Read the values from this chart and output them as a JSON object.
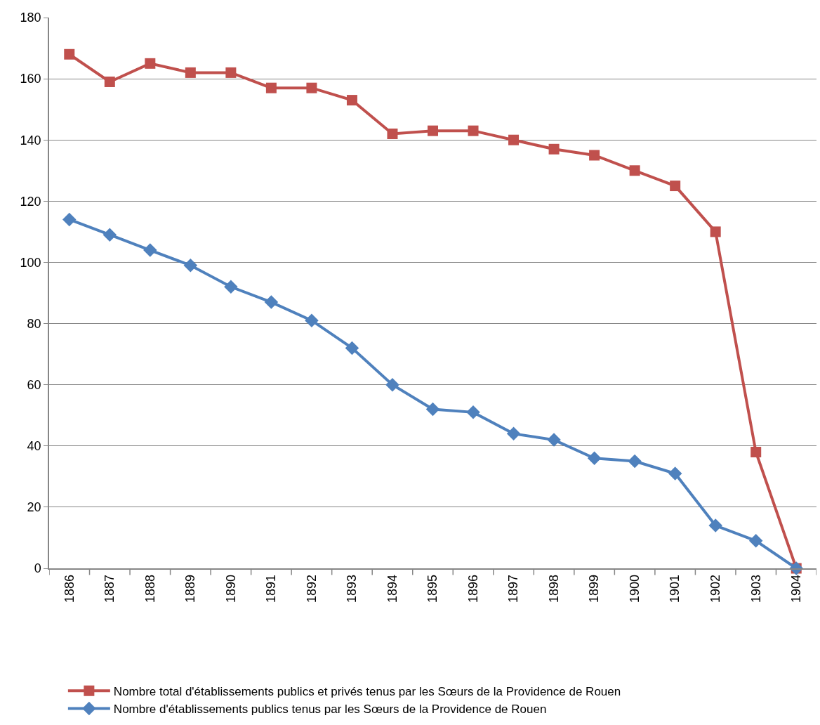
{
  "chart_data": {
    "type": "line",
    "categories": [
      "1886",
      "1887",
      "1888",
      "1889",
      "1890",
      "1891",
      "1892",
      "1893",
      "1894",
      "1895",
      "1896",
      "1897",
      "1898",
      "1899",
      "1900",
      "1901",
      "1902",
      "1903",
      "1904"
    ],
    "series": [
      {
        "name": "Nombre total d'établissements publics et privés tenus par les Sœurs de la Providence de Rouen",
        "color": "#c0504d",
        "marker": "square",
        "values": [
          168,
          159,
          165,
          162,
          162,
          157,
          157,
          153,
          142,
          143,
          143,
          140,
          137,
          135,
          130,
          125,
          110,
          38,
          0
        ]
      },
      {
        "name": "Nombre d'établissements publics tenus par les Sœurs de la Providence de Rouen",
        "color": "#4f81bd",
        "marker": "diamond",
        "values": [
          114,
          109,
          104,
          99,
          92,
          87,
          81,
          72,
          60,
          52,
          51,
          44,
          42,
          36,
          35,
          31,
          14,
          9,
          0
        ]
      }
    ],
    "ylim": [
      0,
      180
    ],
    "yticks": [
      0,
      20,
      40,
      60,
      80,
      100,
      120,
      140,
      160,
      180
    ],
    "grid": "y",
    "legend": "bottom",
    "line_style": "solid"
  }
}
